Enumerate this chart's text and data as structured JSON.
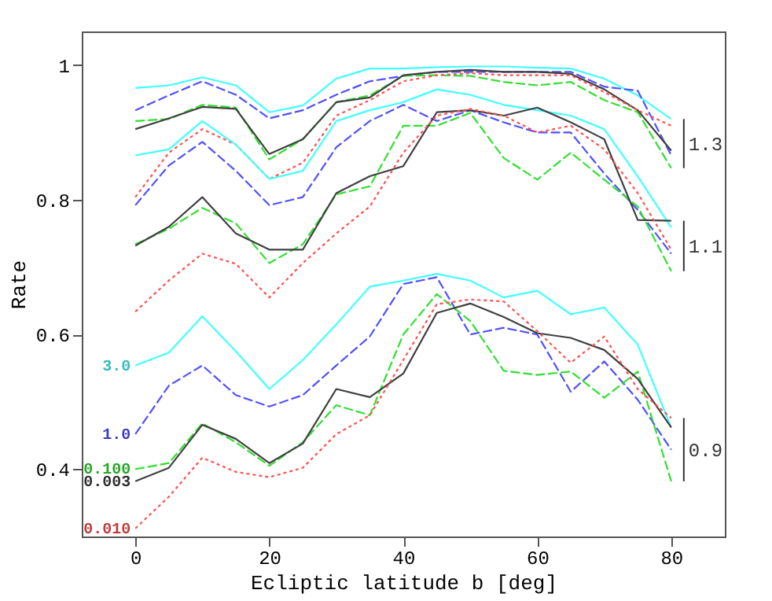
{
  "chart_data": {
    "type": "line",
    "xlabel": "Ecliptic latitude b [deg]",
    "ylabel": "Rate",
    "x": [
      0,
      5,
      10,
      15,
      20,
      25,
      30,
      35,
      40,
      45,
      50,
      55,
      60,
      65,
      70,
      75,
      80
    ],
    "xlim": [
      -8,
      88
    ],
    "ylim": [
      0.3,
      1.05
    ],
    "xticks": [
      0,
      20,
      40,
      60,
      80
    ],
    "yticks": [
      0.4,
      0.6,
      0.8,
      1
    ],
    "grid": false,
    "marker": "none",
    "series": [
      {
        "color": "#40ffff",
        "line_style": "solid",
        "values": [
          0.966,
          0.97,
          0.982,
          0.97,
          0.93,
          0.94,
          0.98,
          0.995,
          0.995,
          0.997,
          0.998,
          0.998,
          0.996,
          0.995,
          0.98,
          0.955,
          0.92
        ]
      },
      {
        "color": "#5050ff",
        "line_style": "dashed",
        "values": [
          0.933,
          0.955,
          0.976,
          0.956,
          0.921,
          0.933,
          0.956,
          0.976,
          0.984,
          0.99,
          0.99,
          0.99,
          0.99,
          0.99,
          0.968,
          0.962,
          0.866
        ]
      },
      {
        "color": "#30e030",
        "line_style": "dashed",
        "values": [
          0.917,
          0.92,
          0.941,
          0.937,
          0.86,
          0.89,
          0.945,
          0.955,
          0.984,
          0.985,
          0.984,
          0.975,
          0.97,
          0.975,
          0.948,
          0.93,
          0.847
        ]
      },
      {
        "color": "#404040",
        "line_style": "solid",
        "values": [
          0.905,
          0.921,
          0.938,
          0.935,
          0.868,
          0.89,
          0.945,
          0.952,
          0.985,
          0.99,
          0.993,
          0.99,
          0.99,
          0.987,
          0.964,
          0.933,
          0.873
        ]
      },
      {
        "color": "#ff5050",
        "line_style": "dotted",
        "values": [
          0.804,
          0.87,
          0.905,
          0.882,
          0.831,
          0.855,
          0.925,
          0.948,
          0.976,
          0.985,
          0.988,
          0.985,
          0.985,
          0.985,
          0.96,
          0.933,
          0.91
        ]
      },
      {
        "color": "#40ffff",
        "line_style": "solid",
        "values": [
          0.866,
          0.875,
          0.917,
          0.882,
          0.831,
          0.843,
          0.917,
          0.933,
          0.945,
          0.964,
          0.956,
          0.941,
          0.933,
          0.925,
          0.905,
          0.835,
          0.759
        ]
      },
      {
        "color": "#5050ff",
        "line_style": "dashed",
        "values": [
          0.792,
          0.851,
          0.886,
          0.843,
          0.792,
          0.804,
          0.878,
          0.917,
          0.941,
          0.917,
          0.933,
          0.915,
          0.9,
          0.9,
          0.839,
          0.785,
          0.72
        ]
      },
      {
        "color": "#30e030",
        "line_style": "dashed",
        "values": [
          0.734,
          0.757,
          0.788,
          0.765,
          0.706,
          0.734,
          0.808,
          0.82,
          0.91,
          0.91,
          0.929,
          0.862,
          0.83,
          0.87,
          0.83,
          0.79,
          0.694
        ]
      },
      {
        "color": "#404040",
        "line_style": "solid",
        "values": [
          0.732,
          0.76,
          0.804,
          0.75,
          0.726,
          0.726,
          0.81,
          0.835,
          0.85,
          0.93,
          0.933,
          0.925,
          0.937,
          0.915,
          0.89,
          0.77,
          0.769
        ]
      },
      {
        "color": "#ff5050",
        "line_style": "dotted",
        "values": [
          0.634,
          0.68,
          0.72,
          0.705,
          0.655,
          0.706,
          0.75,
          0.79,
          0.87,
          0.925,
          0.935,
          0.925,
          0.9,
          0.91,
          0.875,
          0.81,
          0.726
        ]
      },
      {
        "name": "3.0",
        "color": "#40ffff",
        "line_style": "solid",
        "values": [
          0.554,
          0.573,
          0.627,
          0.575,
          0.519,
          0.562,
          0.615,
          0.671,
          0.68,
          0.69,
          0.68,
          0.655,
          0.665,
          0.63,
          0.64,
          0.585,
          0.462
        ]
      },
      {
        "name": "1.0",
        "color": "#5050ff",
        "line_style": "dashed",
        "values": [
          0.452,
          0.524,
          0.554,
          0.51,
          0.493,
          0.51,
          0.554,
          0.597,
          0.675,
          0.685,
          0.6,
          0.61,
          0.6,
          0.515,
          0.56,
          0.503,
          0.429
        ]
      },
      {
        "name": "0.100",
        "color": "#30e030",
        "line_style": "dashed",
        "values": [
          0.4,
          0.409,
          0.468,
          0.44,
          0.405,
          0.44,
          0.495,
          0.48,
          0.6,
          0.66,
          0.62,
          0.546,
          0.54,
          0.545,
          0.506,
          0.545,
          0.382
        ]
      },
      {
        "name": "0.003",
        "color": "#404040",
        "line_style": "solid",
        "values": [
          0.382,
          0.402,
          0.466,
          0.445,
          0.409,
          0.438,
          0.519,
          0.507,
          0.542,
          0.632,
          0.646,
          0.626,
          0.602,
          0.595,
          0.577,
          0.534,
          0.462
        ]
      },
      {
        "name": "0.010",
        "color": "#ff5050",
        "line_style": "dotted",
        "values": [
          0.312,
          0.359,
          0.417,
          0.396,
          0.388,
          0.402,
          0.452,
          0.48,
          0.562,
          0.645,
          0.652,
          0.649,
          0.605,
          0.558,
          0.597,
          0.519,
          0.476
        ]
      }
    ],
    "annotations": [
      "1.3",
      "1.1",
      "0.9"
    ]
  }
}
